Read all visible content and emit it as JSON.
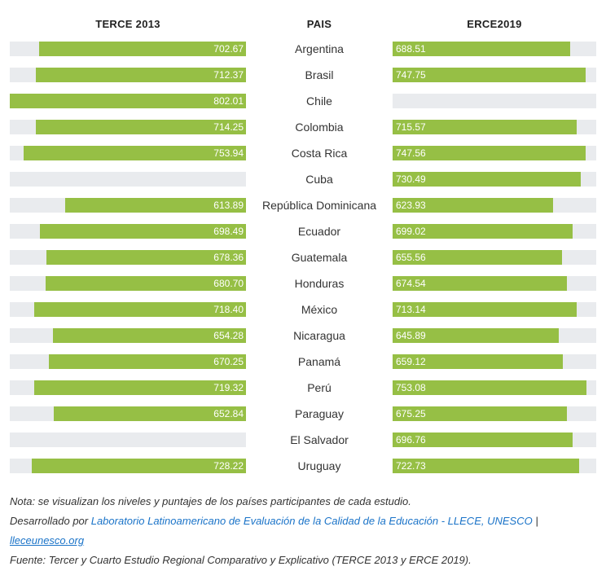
{
  "chart_data": {
    "type": "bar",
    "subtype": "horizontal-butterfly",
    "headers": {
      "left": "TERCE 2013",
      "center": "PAIS",
      "right": "ERCE2019"
    },
    "categories": [
      "Argentina",
      "Brasil",
      "Chile",
      "Colombia",
      "Costa Rica",
      "Cuba",
      "República Dominicana",
      "Ecuador",
      "Guatemala",
      "Honduras",
      "México",
      "Nicaragua",
      "Panamá",
      "Perú",
      "Paraguay",
      "El Salvador",
      "Uruguay"
    ],
    "series": [
      {
        "name": "TERCE 2013",
        "labels": [
          "702.67",
          "712.37",
          "802.01",
          "714.25",
          "753.94",
          null,
          "613.89",
          "698.49",
          "678.36",
          "680.70",
          "718.40",
          "654.28",
          "670.25",
          "719.32",
          "652.84",
          null,
          "728.22"
        ],
        "values": [
          702.67,
          712.37,
          802.01,
          714.25,
          753.94,
          null,
          613.89,
          698.49,
          678.36,
          680.7,
          718.4,
          654.28,
          670.25,
          719.32,
          652.84,
          null,
          728.22
        ],
        "max": 802.01
      },
      {
        "name": "ERCE2019",
        "labels": [
          "688.51",
          "747.75",
          null,
          "715.57",
          "747.56",
          "730.49",
          "623.93",
          "699.02",
          "655.56",
          "674.54",
          "713.14",
          "645.89",
          "659.12",
          "753.08",
          "675.25",
          "696.76",
          "722.73"
        ],
        "values": [
          688.51,
          747.75,
          null,
          715.57,
          747.56,
          730.49,
          623.93,
          699.02,
          655.56,
          674.54,
          713.14,
          645.89,
          659.12,
          753.08,
          675.25,
          696.76,
          722.73
        ],
        "max": 790
      }
    ],
    "colors": {
      "bar": "#96bf45",
      "track": "#e9ebee",
      "value_text": "#ffffff"
    }
  },
  "notes": {
    "nota": "Nota: se visualizan los niveles y puntajes de los países participantes de cada estudio.",
    "desarrollado_prefix": "Desarrollado por ",
    "desarrollado_link": "Laboratorio Latinoamericano de Evaluación de la Calidad de la Educación - LLECE, UNESCO",
    "separator": " |",
    "site_link": "lleceunesco.org",
    "fuente": "Fuente: Tercer y Cuarto Estudio Regional Comparativo y Explicativo (TERCE 2013 y ERCE 2019)."
  }
}
